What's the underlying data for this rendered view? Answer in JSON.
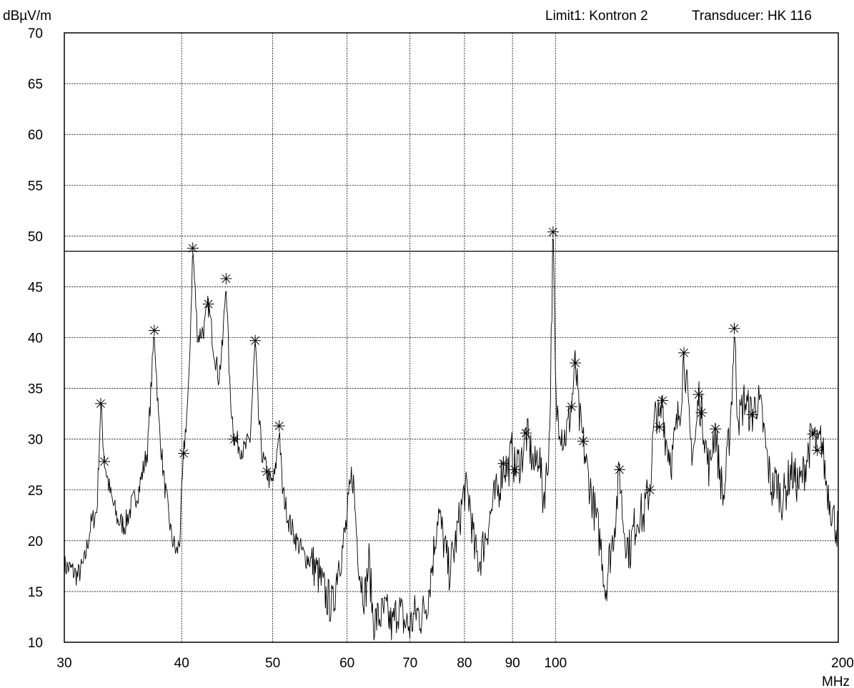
{
  "header": {
    "unit_label": "dBµV/m",
    "limit_label": "Limit1: Kontron 2",
    "transducer_label": "Transducer: HK 116"
  },
  "chart_data": {
    "type": "line",
    "title": "",
    "xlabel": "MHz",
    "ylabel": "dBµV/m",
    "x_scale": "log",
    "xlim": [
      30,
      200
    ],
    "ylim": [
      10,
      70
    ],
    "grid": true,
    "x_ticks": [
      30,
      40,
      50,
      60,
      70,
      80,
      90,
      100,
      200
    ],
    "y_ticks": [
      10,
      15,
      20,
      25,
      30,
      35,
      40,
      45,
      50,
      55,
      60,
      65,
      70
    ],
    "limit_line": {
      "name": "Kontron 2",
      "value": 48.5
    },
    "series": [
      {
        "values_xy": [
          [
            30,
            17.5
          ],
          [
            30.5,
            17.2
          ],
          [
            31,
            16.5
          ],
          [
            31.5,
            17.8
          ],
          [
            32,
            21.5
          ],
          [
            32.5,
            23
          ],
          [
            32.8,
            33.5
          ],
          [
            33.1,
            27.8
          ],
          [
            33.6,
            24.5
          ],
          [
            34.2,
            22
          ],
          [
            34.8,
            21.5
          ],
          [
            35.4,
            23.5
          ],
          [
            36,
            25
          ],
          [
            36.8,
            29
          ],
          [
            37.4,
            40.7
          ],
          [
            37.8,
            32
          ],
          [
            38.3,
            26
          ],
          [
            39,
            20.5
          ],
          [
            39.5,
            18.7
          ],
          [
            39.8,
            20
          ],
          [
            40.2,
            28.6
          ],
          [
            40.7,
            35
          ],
          [
            41.1,
            48.8
          ],
          [
            41.6,
            40
          ],
          [
            42.3,
            41
          ],
          [
            42.7,
            43.3
          ],
          [
            43.2,
            39.5
          ],
          [
            43.8,
            36
          ],
          [
            44.2,
            39
          ],
          [
            44.6,
            45.8
          ],
          [
            45.0,
            35
          ],
          [
            45.5,
            30
          ],
          [
            46.0,
            29.5
          ],
          [
            46.6,
            28.8
          ],
          [
            47.3,
            30
          ],
          [
            47.9,
            39.7
          ],
          [
            48.3,
            32
          ],
          [
            48.8,
            28
          ],
          [
            49.3,
            26.8
          ],
          [
            49.8,
            25.5
          ],
          [
            50.3,
            26.5
          ],
          [
            50.8,
            31.3
          ],
          [
            51.2,
            25
          ],
          [
            52,
            22
          ],
          [
            53,
            20
          ],
          [
            54,
            18.5
          ],
          [
            55,
            18
          ],
          [
            56,
            16.5
          ],
          [
            57,
            14.5
          ],
          [
            58,
            13.5
          ],
          [
            58.7,
            18
          ],
          [
            59.3,
            19
          ],
          [
            60,
            22
          ],
          [
            60.8,
            27
          ],
          [
            61.5,
            20
          ],
          [
            62,
            16.5
          ],
          [
            62.7,
            14.5
          ],
          [
            63.3,
            18
          ],
          [
            64,
            12
          ],
          [
            65,
            12.5
          ],
          [
            66,
            13
          ],
          [
            67,
            11.5
          ],
          [
            68,
            13.5
          ],
          [
            69,
            12
          ],
          [
            70,
            11.5
          ],
          [
            71,
            13
          ],
          [
            72,
            12.5
          ],
          [
            73,
            14
          ],
          [
            74,
            18
          ],
          [
            75,
            23
          ],
          [
            76,
            20
          ],
          [
            77,
            17
          ],
          [
            78,
            19
          ],
          [
            79,
            22
          ],
          [
            80,
            25
          ],
          [
            81,
            24
          ],
          [
            82,
            19
          ],
          [
            83,
            18
          ],
          [
            84,
            20
          ],
          [
            85,
            22
          ],
          [
            86,
            24
          ],
          [
            87,
            25
          ],
          [
            88,
            27.6
          ],
          [
            89,
            27
          ],
          [
            90,
            29
          ],
          [
            90.5,
            27
          ],
          [
            91,
            27.5
          ],
          [
            92,
            28
          ],
          [
            93,
            30.6
          ],
          [
            94,
            29
          ],
          [
            95,
            27
          ],
          [
            96,
            29
          ],
          [
            97,
            24
          ],
          [
            98,
            27
          ],
          [
            98.6,
            31
          ],
          [
            99.4,
            50.4
          ],
          [
            100.1,
            33
          ],
          [
            101,
            32
          ],
          [
            102,
            30
          ],
          [
            103,
            31
          ],
          [
            104,
            33.2
          ],
          [
            105,
            37.5
          ],
          [
            106,
            32
          ],
          [
            107,
            29.8
          ],
          [
            108,
            27
          ],
          [
            109,
            25
          ],
          [
            110,
            23
          ],
          [
            111,
            21
          ],
          [
            112,
            19
          ],
          [
            113,
            15
          ],
          [
            114,
            18
          ],
          [
            115,
            20
          ],
          [
            116,
            23
          ],
          [
            117,
            27
          ],
          [
            118,
            22
          ],
          [
            119,
            20
          ],
          [
            120,
            19
          ],
          [
            121,
            21
          ],
          [
            122,
            22
          ],
          [
            123,
            23
          ],
          [
            124,
            22
          ],
          [
            125,
            24
          ],
          [
            126,
            25
          ],
          [
            127,
            30
          ],
          [
            128,
            33
          ],
          [
            129,
            31.2
          ],
          [
            130,
            33.8
          ],
          [
            131,
            30
          ],
          [
            132,
            29
          ],
          [
            133,
            28
          ],
          [
            134,
            30
          ],
          [
            135,
            32
          ],
          [
            136,
            34
          ],
          [
            137,
            38.5
          ],
          [
            138,
            35
          ],
          [
            139,
            30
          ],
          [
            140,
            29
          ],
          [
            141,
            30
          ],
          [
            142,
            34.4
          ],
          [
            143,
            32.6
          ],
          [
            144,
            31
          ],
          [
            145,
            28
          ],
          [
            146,
            27
          ],
          [
            147,
            30
          ],
          [
            148,
            31
          ],
          [
            149,
            28
          ],
          [
            150,
            26
          ],
          [
            151,
            24
          ],
          [
            152,
            27
          ],
          [
            153,
            30
          ],
          [
            154,
            34
          ],
          [
            155,
            40.9
          ],
          [
            156,
            34
          ],
          [
            157,
            32
          ],
          [
            158,
            33
          ],
          [
            159,
            34
          ],
          [
            160,
            33
          ],
          [
            162,
            32.4
          ],
          [
            164,
            34
          ],
          [
            166,
            32
          ],
          [
            168,
            28
          ],
          [
            170,
            25
          ],
          [
            172,
            26
          ],
          [
            174,
            24
          ],
          [
            176,
            25
          ],
          [
            178,
            27
          ],
          [
            180,
            26
          ],
          [
            182,
            25.5
          ],
          [
            184,
            27
          ],
          [
            186,
            29
          ],
          [
            188,
            30.5
          ],
          [
            190,
            28.9
          ],
          [
            192,
            30
          ],
          [
            194,
            26
          ],
          [
            196,
            24
          ],
          [
            198,
            22
          ],
          [
            200,
            21
          ]
        ]
      }
    ],
    "markers": [
      [
        32.8,
        33.5
      ],
      [
        33.1,
        27.8
      ],
      [
        37.4,
        40.7
      ],
      [
        40.2,
        28.6
      ],
      [
        41.1,
        48.8
      ],
      [
        42.7,
        43.3
      ],
      [
        44.6,
        45.8
      ],
      [
        45.5,
        30
      ],
      [
        47.9,
        39.7
      ],
      [
        49.3,
        26.8
      ],
      [
        50.8,
        31.3
      ],
      [
        88,
        27.6
      ],
      [
        90.5,
        27
      ],
      [
        93,
        30.6
      ],
      [
        99.4,
        50.4
      ],
      [
        104,
        33.2
      ],
      [
        105,
        37.5
      ],
      [
        107,
        29.8
      ],
      [
        117,
        27
      ],
      [
        126,
        25
      ],
      [
        129,
        31.2
      ],
      [
        130,
        33.8
      ],
      [
        137,
        38.5
      ],
      [
        142,
        34.4
      ],
      [
        143,
        32.6
      ],
      [
        148,
        31
      ],
      [
        155,
        40.9
      ],
      [
        162,
        32.4
      ],
      [
        190,
        28.9
      ],
      [
        188,
        30.5
      ]
    ]
  }
}
